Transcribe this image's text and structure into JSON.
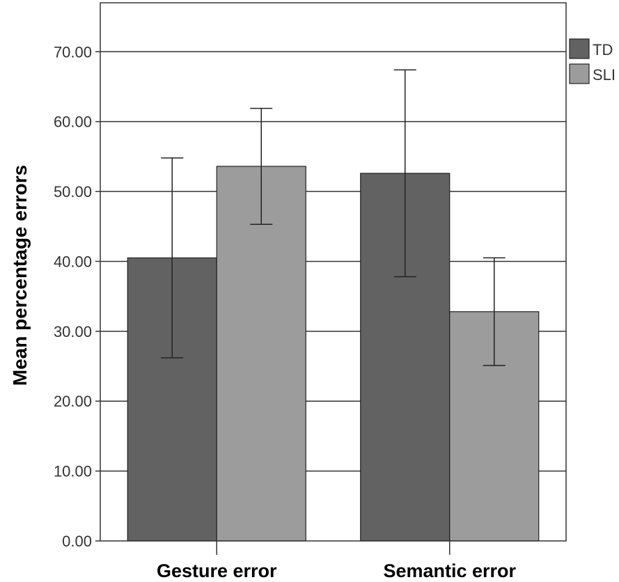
{
  "chart_data": {
    "type": "bar",
    "ylabel": "Mean percentage errors",
    "xlabel": "",
    "categories": [
      "Gesture error",
      "Semantic error"
    ],
    "ylim": [
      0,
      77
    ],
    "yticks": [
      0,
      10,
      20,
      30,
      40,
      50,
      60,
      70
    ],
    "ytick_labels": [
      "0.00",
      "10.00",
      "20.00",
      "30.00",
      "40.00",
      "50.00",
      "60.00",
      "70.00"
    ],
    "grid": true,
    "legend_position": "top-right outside",
    "series": [
      {
        "name": "TD",
        "color": "#626262",
        "values": [
          40.5,
          52.6
        ],
        "error_low": [
          26.2,
          37.8
        ],
        "error_high": [
          54.8,
          67.4
        ]
      },
      {
        "name": "SLI",
        "color": "#9c9c9c",
        "values": [
          53.6,
          32.8
        ],
        "error_low": [
          45.3,
          25.1
        ],
        "error_high": [
          61.9,
          40.5
        ]
      }
    ]
  }
}
